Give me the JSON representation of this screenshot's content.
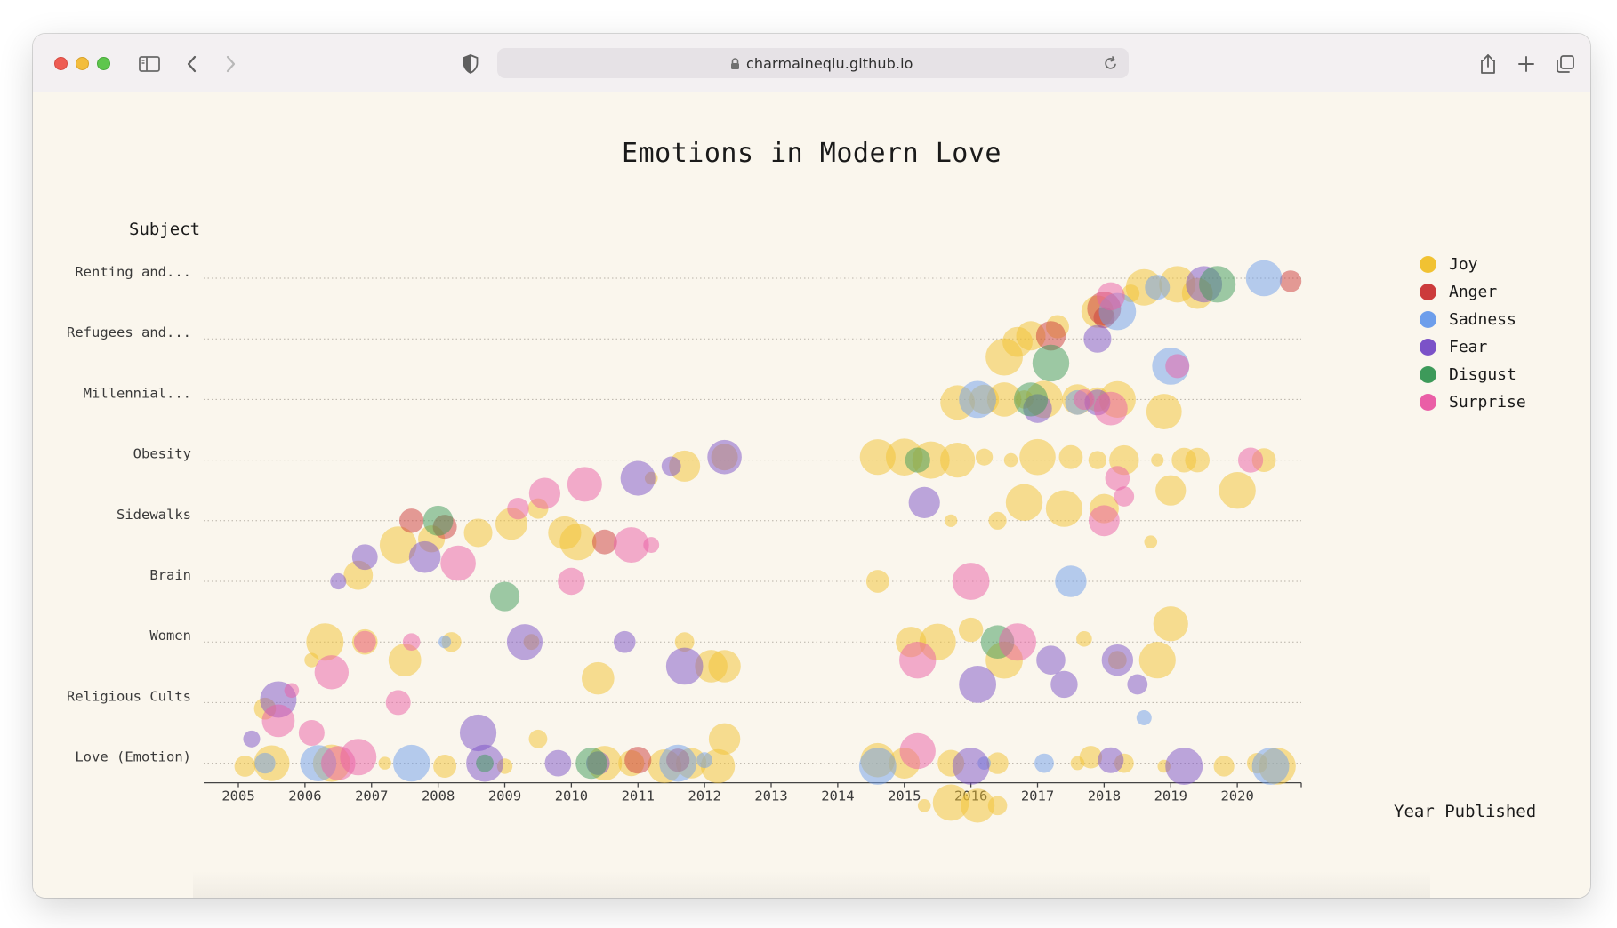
{
  "browser": {
    "url": "charmaineqiu.github.io",
    "icons": [
      "sidebar-icon",
      "back-icon",
      "forward-icon",
      "privacy-shield-icon",
      "lock-icon",
      "reload-icon",
      "share-icon",
      "new-tab-icon",
      "tabs-overview-icon"
    ]
  },
  "colors": {
    "Joy": "#f1c232",
    "Anger": "#cc3b3b",
    "Sadness": "#6d9eeb",
    "Fear": "#7b52c8",
    "Disgust": "#3d9a5a",
    "Surprise": "#ea5ea6"
  },
  "chart_data": {
    "type": "scatter",
    "title": "Emotions in Modern Love",
    "xlabel": "Year Published",
    "ylabel": "Subject",
    "xlim": [
      2005,
      2021
    ],
    "x_ticks": [
      "2005",
      "2006",
      "2007",
      "2008",
      "2009",
      "2010",
      "2011",
      "2012",
      "2013",
      "2014",
      "2015",
      "2016",
      "2017",
      "2018",
      "2019",
      "2020"
    ],
    "categories": [
      "Renting and...",
      "Refugees and...",
      "Millennial...",
      "Obesity",
      "Sidewalks",
      "Brain",
      "Women",
      "Religious Cults",
      "Love (Emotion)"
    ],
    "legend": [
      "Joy",
      "Anger",
      "Sadness",
      "Fear",
      "Disgust",
      "Surprise"
    ],
    "legend_position": "right",
    "grid": "dotted horizontal lines per subject",
    "series": [
      {
        "name": "Joy",
        "points": [
          [
            2005.1,
            8.05
          ],
          [
            2005.4,
            7.1
          ],
          [
            2006.1,
            6.3
          ],
          [
            2006.8,
            4.9
          ],
          [
            2007.4,
            4.4
          ],
          [
            2007.9,
            4.3
          ],
          [
            2008.6,
            4.2
          ],
          [
            2009.1,
            4.05
          ],
          [
            2009.5,
            3.8
          ],
          [
            2009.9,
            4.2
          ],
          [
            2010.1,
            4.35
          ],
          [
            2011.2,
            3.3
          ],
          [
            2011.7,
            3.1
          ],
          [
            2012.3,
            2.95
          ],
          [
            2006.3,
            6.0
          ],
          [
            2006.9,
            6.0
          ],
          [
            2007.5,
            6.3
          ],
          [
            2008.2,
            6.0
          ],
          [
            2009.4,
            6.0
          ],
          [
            2010.4,
            6.6
          ],
          [
            2011.7,
            6.0
          ],
          [
            2012.1,
            6.4
          ],
          [
            2012.3,
            6.4
          ],
          [
            2005.5,
            8.0
          ],
          [
            2006.4,
            8.0
          ],
          [
            2007.2,
            8.0
          ],
          [
            2008.1,
            8.05
          ],
          [
            2009.0,
            8.05
          ],
          [
            2009.5,
            7.6
          ],
          [
            2010.5,
            8.0
          ],
          [
            2010.9,
            8.0
          ],
          [
            2011.4,
            8.05
          ],
          [
            2011.8,
            8.0
          ],
          [
            2012.2,
            8.05
          ],
          [
            2012.3,
            7.6
          ],
          [
            2014.6,
            2.95
          ],
          [
            2015.0,
            2.95
          ],
          [
            2015.4,
            3.0
          ],
          [
            2015.8,
            3.0
          ],
          [
            2016.2,
            2.95
          ],
          [
            2016.6,
            3.0
          ],
          [
            2017.0,
            2.95
          ],
          [
            2017.5,
            2.95
          ],
          [
            2017.9,
            3.0
          ],
          [
            2018.3,
            3.0
          ],
          [
            2018.8,
            3.0
          ],
          [
            2019.2,
            3.0
          ],
          [
            2019.4,
            3.0
          ],
          [
            2020.4,
            3.0
          ],
          [
            2015.8,
            2.05
          ],
          [
            2016.2,
            2.0
          ],
          [
            2016.5,
            2.0
          ],
          [
            2016.8,
            2.0
          ],
          [
            2017.1,
            2.0
          ],
          [
            2017.6,
            2.0
          ],
          [
            2017.9,
            2.0
          ],
          [
            2018.2,
            2.0
          ],
          [
            2018.9,
            2.2
          ],
          [
            2016.5,
            1.3
          ],
          [
            2016.7,
            1.05
          ],
          [
            2016.9,
            0.95
          ],
          [
            2017.3,
            0.8
          ],
          [
            2017.9,
            0.55
          ],
          [
            2018.4,
            0.25
          ],
          [
            2018.6,
            0.15
          ],
          [
            2019.1,
            0.1
          ],
          [
            2019.4,
            0.25
          ],
          [
            2015.7,
            4.0
          ],
          [
            2016.4,
            4.0
          ],
          [
            2016.8,
            3.7
          ],
          [
            2017.4,
            3.8
          ],
          [
            2018.0,
            3.8
          ],
          [
            2018.7,
            4.35
          ],
          [
            2019.0,
            3.5
          ],
          [
            2020.0,
            3.5
          ],
          [
            2015.1,
            6.0
          ],
          [
            2015.5,
            6.0
          ],
          [
            2016.0,
            5.8
          ],
          [
            2016.5,
            6.3
          ],
          [
            2017.7,
            5.95
          ],
          [
            2018.2,
            6.3
          ],
          [
            2018.8,
            6.3
          ],
          [
            2019.0,
            5.7
          ],
          [
            2014.6,
            7.95
          ],
          [
            2015.0,
            8.0
          ],
          [
            2015.7,
            8.0
          ],
          [
            2016.4,
            8.0
          ],
          [
            2017.6,
            8.0
          ],
          [
            2018.3,
            8.0
          ],
          [
            2018.9,
            8.05
          ],
          [
            2019.8,
            8.05
          ],
          [
            2020.3,
            8.0
          ],
          [
            2020.6,
            8.05
          ],
          [
            2015.3,
            8.7
          ],
          [
            2015.7,
            8.65
          ],
          [
            2016.1,
            8.7
          ],
          [
            2016.4,
            8.7
          ],
          [
            2017.8,
            7.9
          ],
          [
            2014.6,
            5.0
          ]
        ]
      },
      {
        "name": "Anger",
        "points": [
          [
            2008.1,
            4.1
          ],
          [
            2011.0,
            7.95
          ],
          [
            2011.6,
            7.95
          ],
          [
            2010.5,
            4.35
          ],
          [
            2018.0,
            0.65
          ],
          [
            2018.0,
            0.5
          ],
          [
            2020.8,
            0.05
          ],
          [
            2007.6,
            4.0
          ],
          [
            2017.2,
            0.95
          ]
        ]
      },
      {
        "name": "Sadness",
        "points": [
          [
            2005.4,
            8.0
          ],
          [
            2006.2,
            8.0
          ],
          [
            2007.6,
            8.0
          ],
          [
            2008.1,
            6.0
          ],
          [
            2011.6,
            8.0
          ],
          [
            2012.0,
            7.95
          ],
          [
            2014.6,
            8.05
          ],
          [
            2016.2,
            8.0
          ],
          [
            2017.1,
            8.0
          ],
          [
            2016.1,
            2.0
          ],
          [
            2017.6,
            2.05
          ],
          [
            2018.2,
            0.55
          ],
          [
            2018.8,
            0.15
          ],
          [
            2019.0,
            1.45
          ],
          [
            2020.4,
            0.0
          ],
          [
            2020.5,
            8.05
          ],
          [
            2017.5,
            5.0
          ],
          [
            2018.6,
            7.25
          ]
        ]
      },
      {
        "name": "Fear",
        "points": [
          [
            2006.5,
            5.0
          ],
          [
            2006.9,
            4.6
          ],
          [
            2007.8,
            4.6
          ],
          [
            2008.6,
            7.5
          ],
          [
            2008.7,
            8.0
          ],
          [
            2009.8,
            8.0
          ],
          [
            2010.4,
            8.0
          ],
          [
            2010.8,
            6.0
          ],
          [
            2011.0,
            3.3
          ],
          [
            2011.5,
            3.1
          ],
          [
            2012.3,
            2.95
          ],
          [
            2009.3,
            6.0
          ],
          [
            2011.7,
            6.4
          ],
          [
            2015.3,
            3.7
          ],
          [
            2016.1,
            6.7
          ],
          [
            2017.2,
            6.3
          ],
          [
            2017.4,
            6.7
          ],
          [
            2018.2,
            6.3
          ],
          [
            2018.5,
            6.7
          ],
          [
            2017.0,
            2.15
          ],
          [
            2017.9,
            2.05
          ],
          [
            2017.9,
            1.0
          ],
          [
            2019.5,
            0.1
          ],
          [
            2019.2,
            8.05
          ],
          [
            2016.0,
            8.05
          ],
          [
            2018.1,
            7.95
          ],
          [
            2005.2,
            7.6
          ],
          [
            2005.6,
            6.95
          ]
        ]
      },
      {
        "name": "Disgust",
        "points": [
          [
            2008.0,
            4.0
          ],
          [
            2008.7,
            8.0
          ],
          [
            2010.3,
            8.0
          ],
          [
            2016.4,
            6.0
          ],
          [
            2015.2,
            3.0
          ],
          [
            2017.2,
            1.4
          ],
          [
            2019.7,
            0.1
          ],
          [
            2009.0,
            5.25
          ],
          [
            2016.9,
            2.0
          ]
        ]
      },
      {
        "name": "Surprise",
        "points": [
          [
            2006.5,
            8.0
          ],
          [
            2006.8,
            7.9
          ],
          [
            2007.4,
            7.0
          ],
          [
            2007.6,
            6.0
          ],
          [
            2008.3,
            4.7
          ],
          [
            2009.2,
            3.8
          ],
          [
            2009.6,
            3.55
          ],
          [
            2010.2,
            3.4
          ],
          [
            2010.9,
            4.4
          ],
          [
            2011.2,
            4.4
          ],
          [
            2010.0,
            5.0
          ],
          [
            2015.2,
            7.8
          ],
          [
            2015.2,
            6.3
          ],
          [
            2016.0,
            5.0
          ],
          [
            2016.7,
            6.0
          ],
          [
            2018.0,
            4.0
          ],
          [
            2018.2,
            3.3
          ],
          [
            2018.3,
            3.6
          ],
          [
            2019.1,
            1.45
          ],
          [
            2020.2,
            3.0
          ],
          [
            2017.7,
            2.0
          ],
          [
            2018.1,
            2.15
          ],
          [
            2018.1,
            0.3
          ],
          [
            2005.8,
            6.8
          ],
          [
            2006.1,
            7.5
          ],
          [
            2006.4,
            6.5
          ],
          [
            2006.9,
            6.0
          ],
          [
            2005.6,
            7.3
          ]
        ]
      }
    ]
  }
}
